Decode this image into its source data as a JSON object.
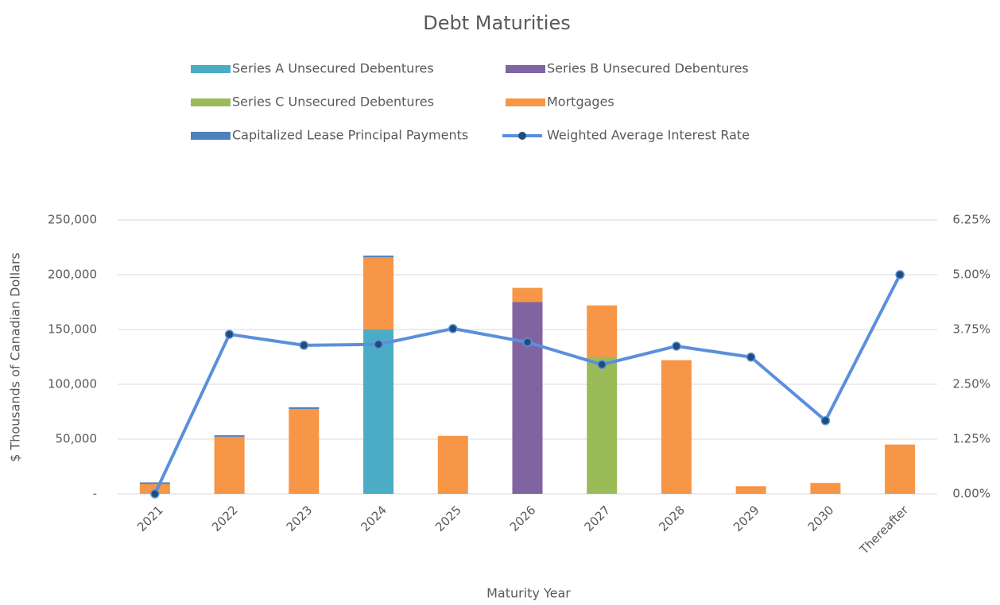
{
  "chart_data": {
    "type": "bar",
    "stacked": true,
    "title": "Debt Maturities",
    "x_label": "Maturity Year",
    "y_label": "$ Thousands of Canadian Dollars",
    "categories": [
      "2021",
      "2022",
      "2023",
      "2024",
      "2025",
      "2026",
      "2027",
      "2028",
      "2029",
      "2030",
      "Thereafter"
    ],
    "series": [
      {
        "name": "Series A Unsecured Debentures",
        "color": "#4bacc6",
        "values": [
          0,
          0,
          0,
          150000,
          0,
          0,
          0,
          0,
          0,
          0,
          0
        ]
      },
      {
        "name": "Series B Unsecured Debentures",
        "color": "#8064a2",
        "values": [
          0,
          0,
          0,
          0,
          0,
          175000,
          0,
          0,
          0,
          0,
          0
        ]
      },
      {
        "name": "Series C Unsecured Debentures",
        "color": "#9bbb59",
        "values": [
          0,
          0,
          0,
          0,
          0,
          0,
          125000,
          0,
          0,
          0,
          0
        ]
      },
      {
        "name": "Mortgages",
        "color": "#f79646",
        "values": [
          9000,
          52000,
          77500,
          66000,
          53000,
          13000,
          47000,
          122000,
          7000,
          10000,
          45000
        ]
      },
      {
        "name": "Capitalized Lease Principal Payments",
        "color": "#4f81bd",
        "values": [
          1500,
          1500,
          1500,
          1500,
          0,
          0,
          0,
          0,
          0,
          0,
          0
        ]
      },
      {
        "name": "Weighted Average Interest Rate",
        "color": "#5b8fdc",
        "type": "line",
        "axis": "y2",
        "values": [
          0,
          3.64,
          3.39,
          3.41,
          3.77,
          3.46,
          2.95,
          3.37,
          3.12,
          1.67,
          5.0
        ]
      }
    ],
    "ylim": [
      0,
      250000
    ],
    "yticks": [
      {
        "value": 0,
        "label": "-"
      },
      {
        "value": 50000,
        "label": "50,000"
      },
      {
        "value": 100000,
        "label": "100,000"
      },
      {
        "value": 150000,
        "label": "150,000"
      },
      {
        "value": 200000,
        "label": "200,000"
      },
      {
        "value": 250000,
        "label": "250,000"
      }
    ],
    "y2lim": [
      0,
      6.25
    ],
    "y2ticks": [
      {
        "value": 0,
        "label": "0.00%"
      },
      {
        "value": 1.25,
        "label": "1.25%"
      },
      {
        "value": 2.5,
        "label": "2.50%"
      },
      {
        "value": 3.75,
        "label": "3.75%"
      },
      {
        "value": 5,
        "label": "5.00%"
      },
      {
        "value": 6.25,
        "label": "6.25%"
      }
    ],
    "grid": true,
    "legend": "top"
  }
}
